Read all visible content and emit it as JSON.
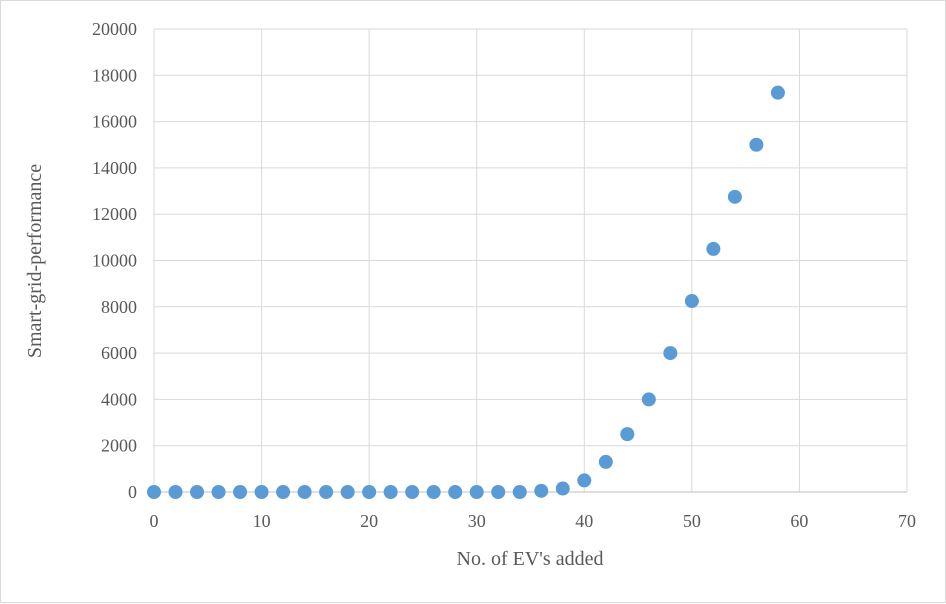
{
  "chart_data": {
    "type": "scatter",
    "title": "",
    "xlabel": "No. of EV's added",
    "ylabel": "Smart-grid-performance",
    "xlim": [
      0,
      70
    ],
    "ylim": [
      0,
      20000
    ],
    "x_ticks": [
      "0",
      "10",
      "20",
      "30",
      "40",
      "50",
      "60",
      "70"
    ],
    "y_ticks": [
      "0",
      "2000",
      "4000",
      "6000",
      "8000",
      "10000",
      "12000",
      "14000",
      "16000",
      "18000",
      "20000"
    ],
    "grid": true,
    "marker_color": "#5b9bd5",
    "series": [
      {
        "x": [
          0,
          2,
          4,
          6,
          8,
          10,
          12,
          14,
          16,
          18,
          20,
          22,
          24,
          26,
          28,
          30,
          32,
          34,
          36,
          38,
          40,
          42,
          44,
          46,
          48,
          50,
          52,
          54,
          56,
          58
        ],
        "y": [
          0,
          0,
          0,
          0,
          0,
          0,
          0,
          0,
          0,
          0,
          0,
          0,
          0,
          0,
          0,
          0,
          0,
          0,
          50,
          150,
          500,
          1300,
          2500,
          4000,
          6000,
          8250,
          10500,
          12750,
          15000,
          17250
        ]
      }
    ]
  }
}
